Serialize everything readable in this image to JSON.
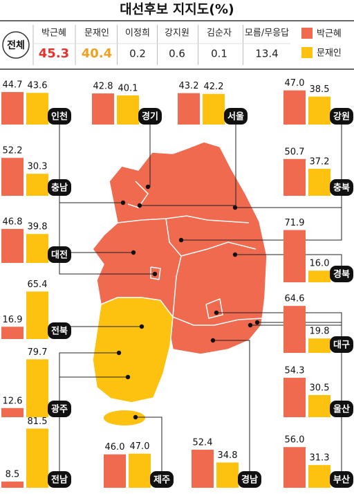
{
  "chart_data": {
    "type": "bar",
    "title": "대선후보 지지도(%)",
    "overall_label": "전체",
    "overall": {
      "categories": [
        "박근혜",
        "문재인",
        "이정희",
        "강지원",
        "김순자",
        "모름/무응답"
      ],
      "values": [
        45.3,
        40.4,
        0.2,
        0.6,
        0.1,
        13.4
      ],
      "value_colors": [
        "#e5322d",
        "#f0a020",
        "#222222",
        "#222222",
        "#222222",
        "#222222"
      ]
    },
    "series": [
      {
        "name": "박근혜",
        "color": "#ef6a4e"
      },
      {
        "name": "문재인",
        "color": "#fdc20f"
      }
    ],
    "regions": [
      {
        "name": "인천",
        "values": [
          44.7,
          43.6
        ],
        "value_labels": [
          "44.7",
          "43.6"
        ]
      },
      {
        "name": "경기",
        "values": [
          42.8,
          40.1
        ],
        "value_labels": [
          "42.8",
          "40.1"
        ]
      },
      {
        "name": "서울",
        "values": [
          43.2,
          42.2
        ],
        "value_labels": [
          "43.2",
          "42.2"
        ]
      },
      {
        "name": "강원",
        "values": [
          47.0,
          38.5
        ],
        "value_labels": [
          "47.0",
          "38.5"
        ]
      },
      {
        "name": "충남",
        "values": [
          52.2,
          30.3
        ],
        "value_labels": [
          "52.2",
          "30.3"
        ]
      },
      {
        "name": "충북",
        "values": [
          50.7,
          37.2
        ],
        "value_labels": [
          "50.7",
          "37.2"
        ]
      },
      {
        "name": "대전",
        "values": [
          46.8,
          39.8
        ],
        "value_labels": [
          "46.8",
          "39.8"
        ]
      },
      {
        "name": "경북",
        "values": [
          71.9,
          16.0
        ],
        "value_labels": [
          "71.9",
          "16.0"
        ]
      },
      {
        "name": "전북",
        "values": [
          16.9,
          65.4
        ],
        "value_labels": [
          "16.9",
          "65.4"
        ]
      },
      {
        "name": "대구",
        "values": [
          64.6,
          19.8
        ],
        "value_labels": [
          "64.6",
          "19.8"
        ]
      },
      {
        "name": "광주",
        "values": [
          12.6,
          79.7
        ],
        "value_labels": [
          "12.6",
          "79.7"
        ]
      },
      {
        "name": "울산",
        "values": [
          54.3,
          30.5
        ],
        "value_labels": [
          "54.3",
          "30.5"
        ]
      },
      {
        "name": "전남",
        "values": [
          8.5,
          81.5
        ],
        "value_labels": [
          "8.5",
          "81.5"
        ]
      },
      {
        "name": "제주",
        "values": [
          46.0,
          47.0
        ],
        "value_labels": [
          "46.0",
          "47.0"
        ]
      },
      {
        "name": "경남",
        "values": [
          52.4,
          34.8
        ],
        "value_labels": [
          "52.4",
          "34.8"
        ]
      },
      {
        "name": "부산",
        "values": [
          56.0,
          31.3
        ],
        "value_labels": [
          "56.0",
          "31.3"
        ]
      }
    ]
  }
}
